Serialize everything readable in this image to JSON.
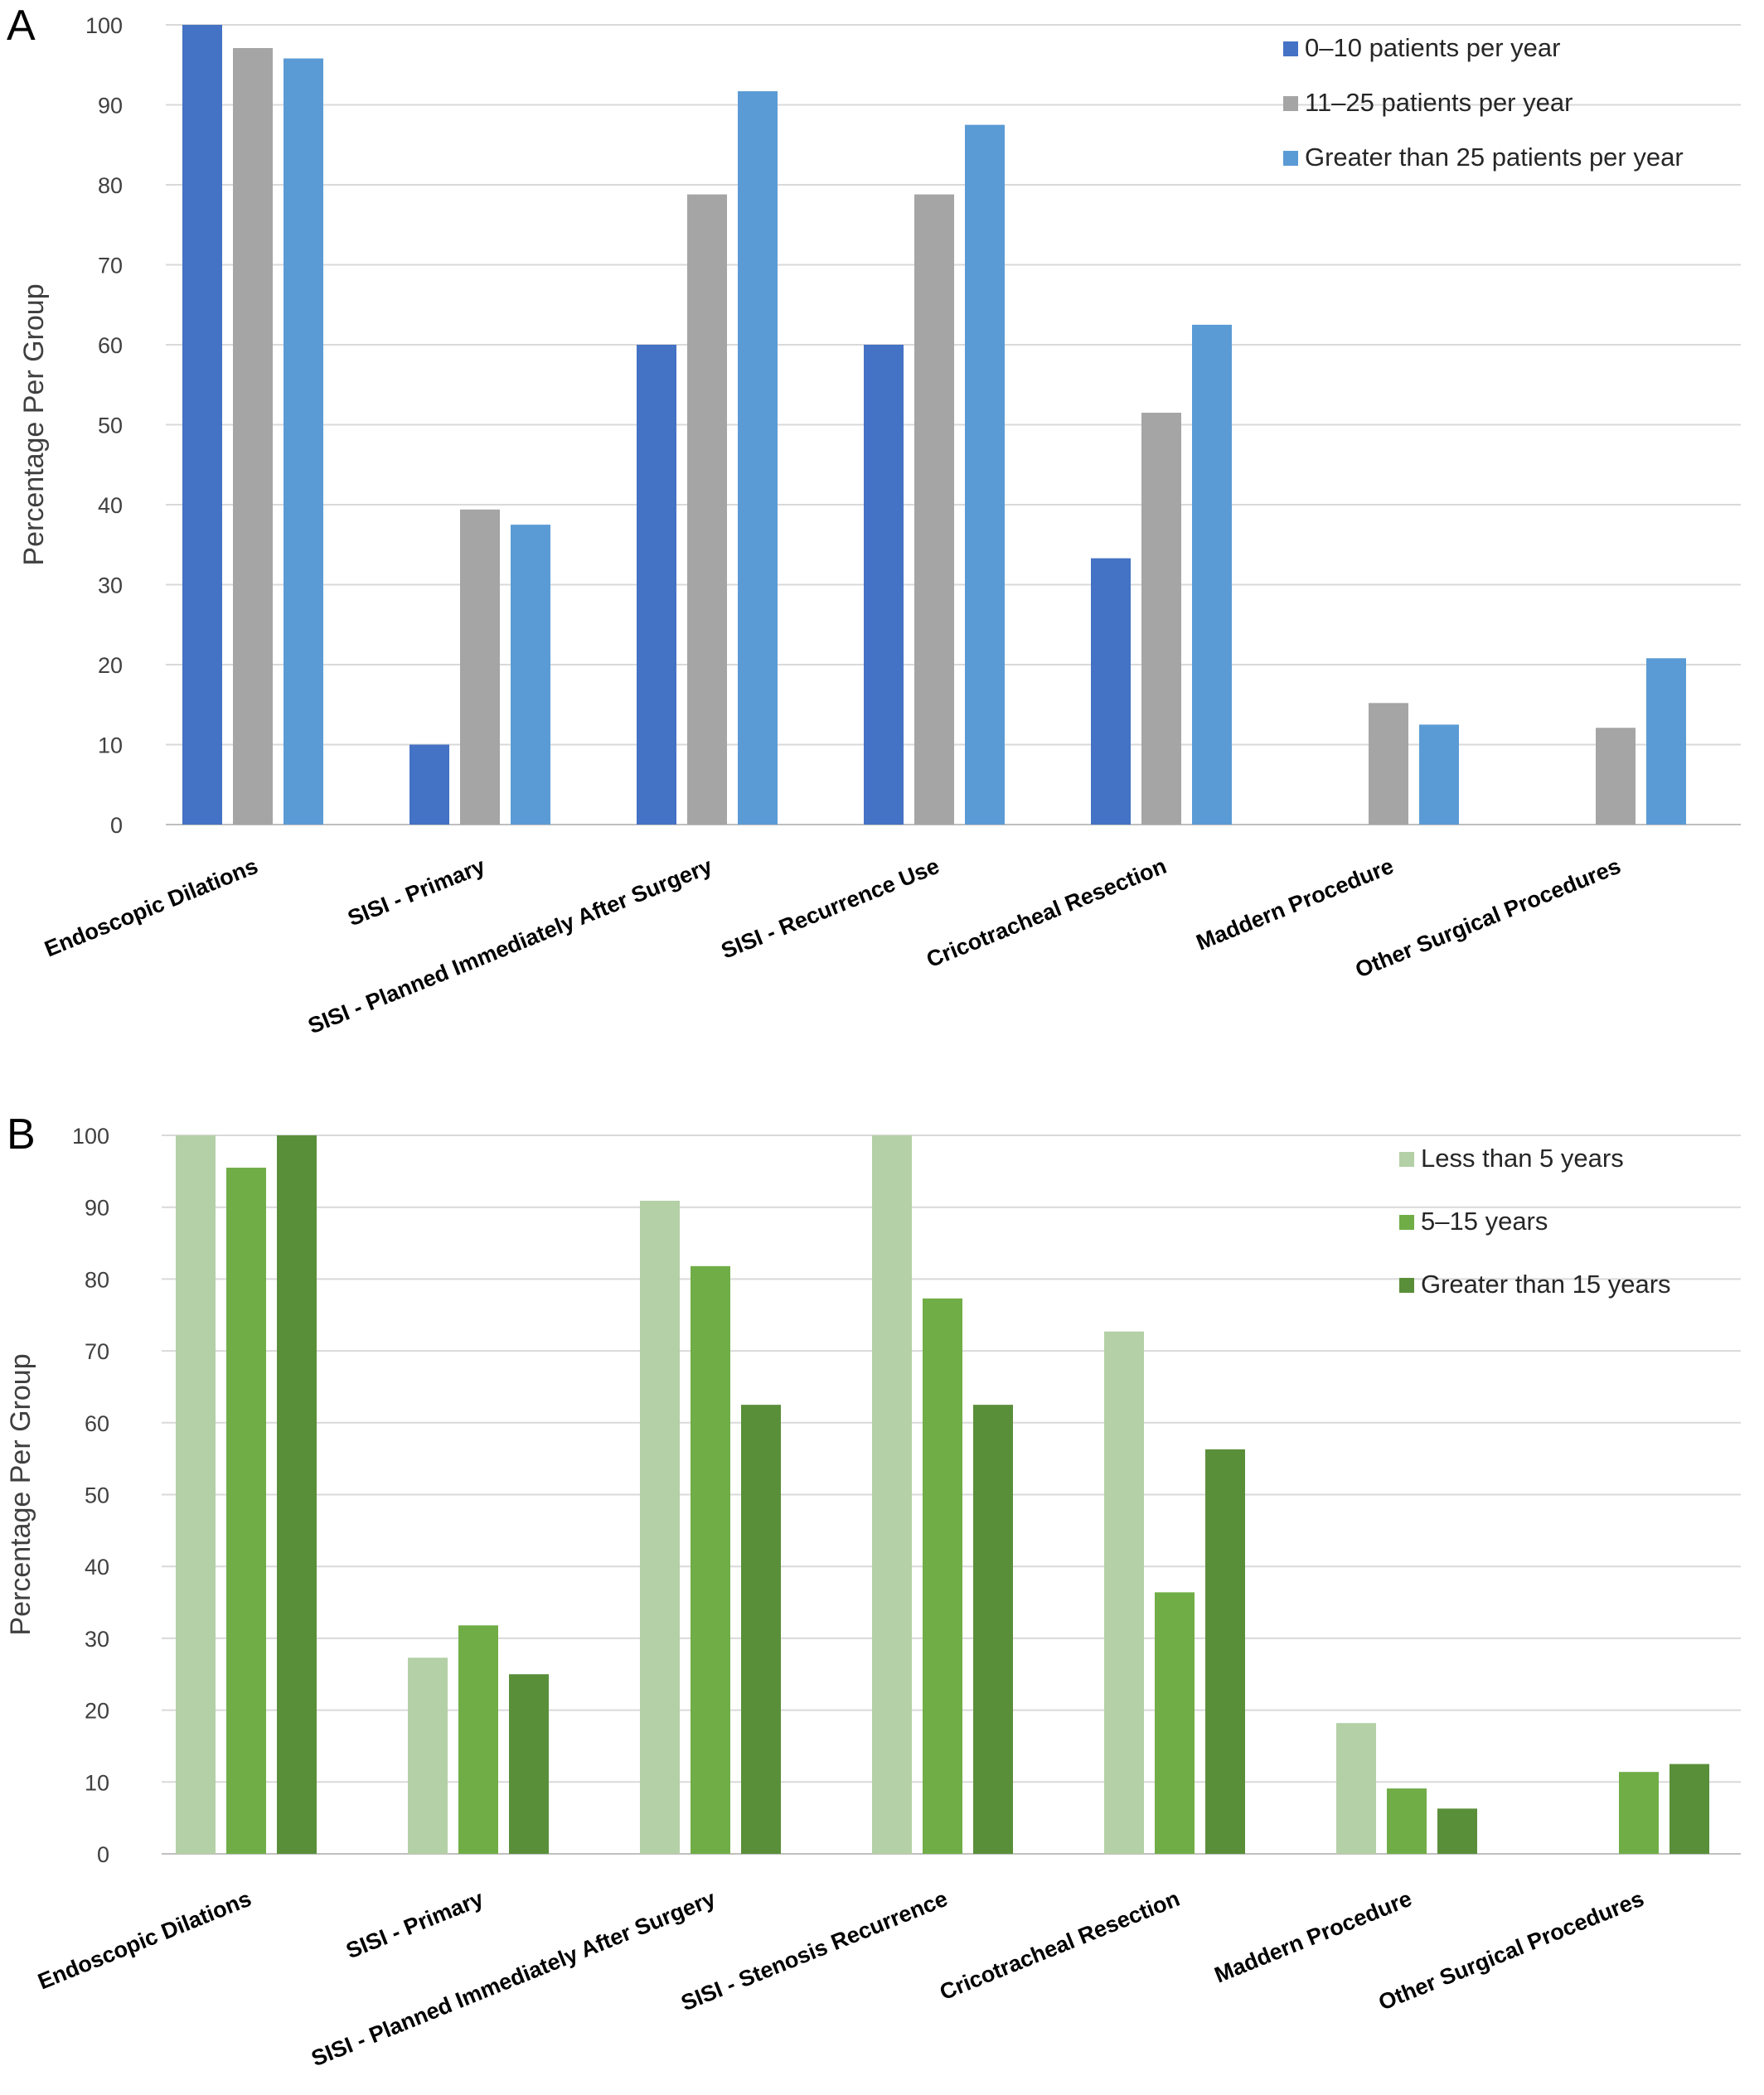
{
  "chart_data": [
    {
      "panel_label": "A",
      "type": "bar",
      "ylabel": "Percentage Per Group",
      "ylim": [
        0,
        100
      ],
      "yticks": [
        "0",
        "10",
        "20",
        "30",
        "40",
        "50",
        "60",
        "70",
        "80",
        "90",
        "100"
      ],
      "grid": true,
      "legend_position": "top-right",
      "categories": [
        "Endoscopic Dilations",
        "SISI - Primary",
        "SISI - Planned Immediately After Surgery",
        "SISI - Recurrence Use",
        "Cricotracheal Resection",
        "Maddern Procedure",
        "Other Surgical Procedures"
      ],
      "series": [
        {
          "name": "0–10 patients per year",
          "color": "#4472c4",
          "values": [
            100,
            10,
            60,
            60,
            33.3,
            0,
            0
          ]
        },
        {
          "name": "11–25 patients per year",
          "color": "#a5a5a5",
          "values": [
            97.1,
            39.4,
            78.8,
            78.8,
            51.5,
            15.2,
            12.1
          ]
        },
        {
          "name": "Greater than 25 patients per year",
          "color": "#5b9bd5",
          "values": [
            95.8,
            37.5,
            91.7,
            87.5,
            62.5,
            12.5,
            20.8
          ]
        }
      ]
    },
    {
      "panel_label": "B",
      "type": "bar",
      "ylabel": "Percentage Per Group",
      "ylim": [
        0,
        100
      ],
      "yticks": [
        "0",
        "10",
        "20",
        "30",
        "40",
        "50",
        "60",
        "70",
        "80",
        "90",
        "100"
      ],
      "grid": true,
      "legend_position": "top-right",
      "categories": [
        "Endoscopic Dilations",
        "SISI - Primary",
        "SISI - Planned Immediately After Surgery",
        "SISI - Stenosis Recurrence",
        "Cricotracheal Resection",
        "Maddern Procedure",
        "Other Surgical Procedures"
      ],
      "series": [
        {
          "name": "Less than 5 years",
          "color": "#b4d0a6",
          "values": [
            100,
            27.3,
            90.9,
            100,
            72.7,
            18.2,
            0
          ]
        },
        {
          "name": "5–15 years",
          "color": "#70ad47",
          "values": [
            95.5,
            31.8,
            81.8,
            77.3,
            36.4,
            9.1,
            11.4
          ]
        },
        {
          "name": "Greater than 15 years",
          "color": "#5a8f3a",
          "values": [
            100,
            25,
            62.5,
            62.5,
            56.3,
            6.3,
            12.5
          ]
        }
      ]
    }
  ]
}
